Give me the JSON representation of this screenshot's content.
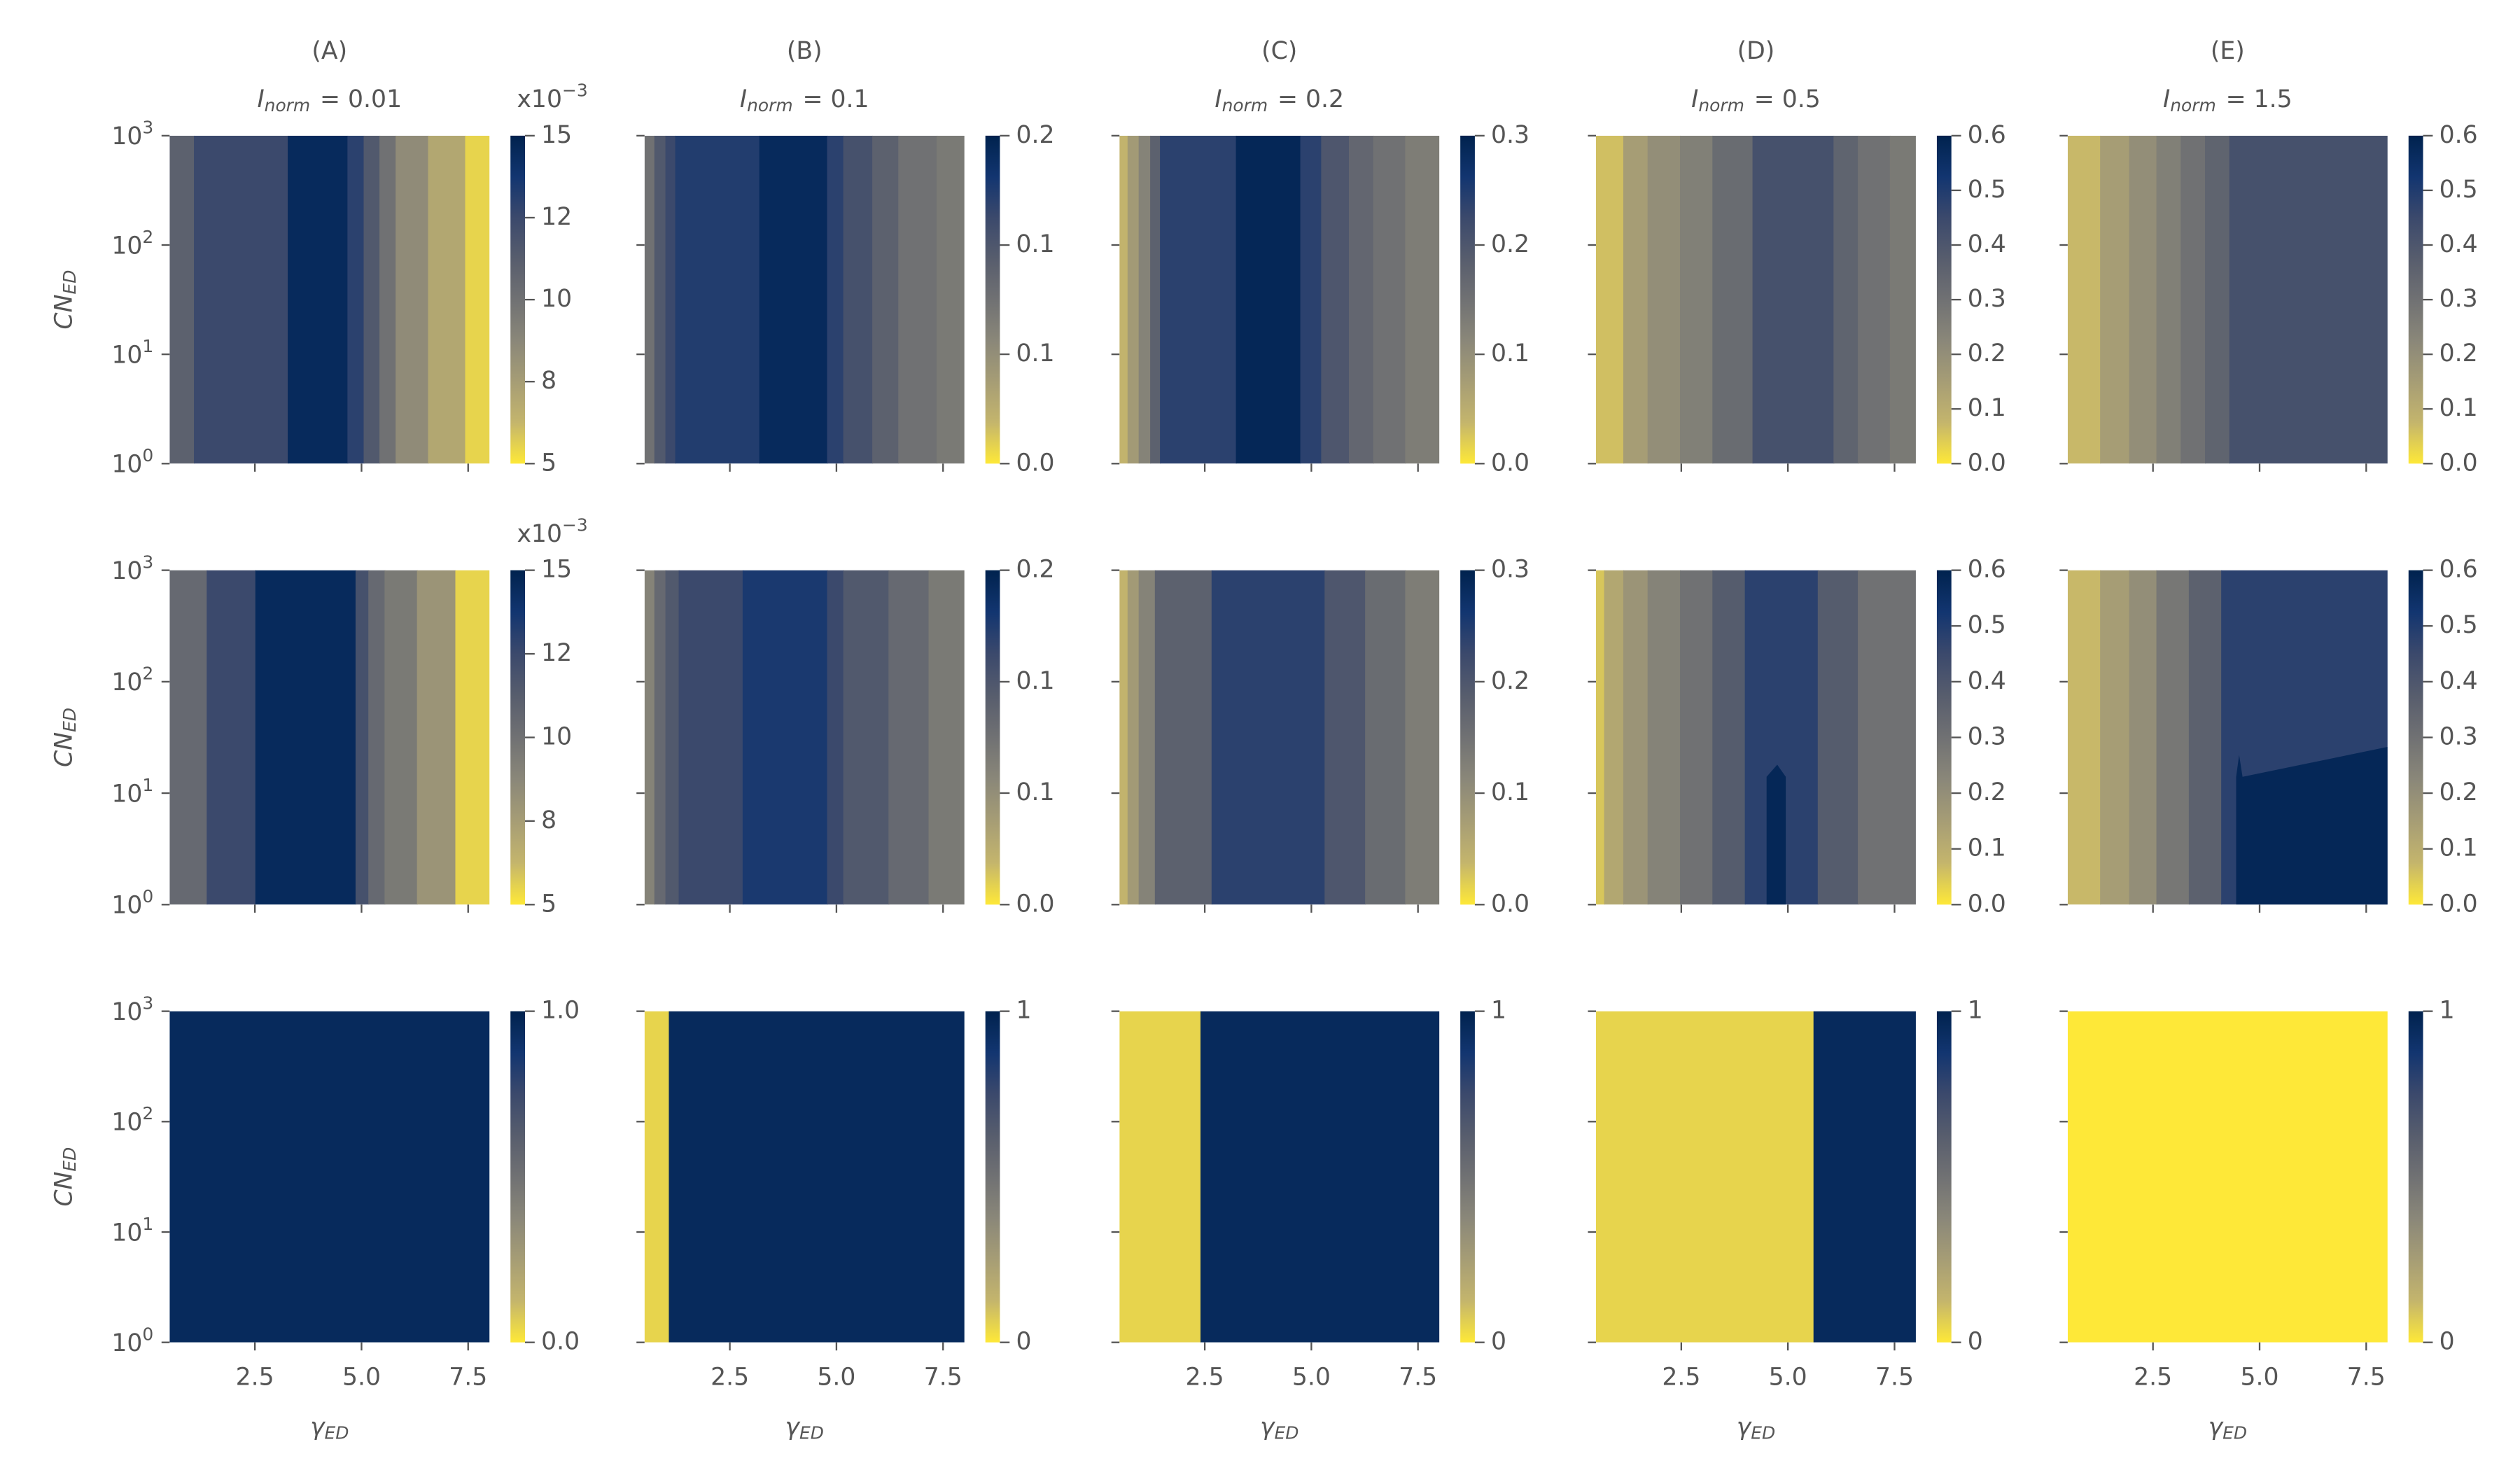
{
  "chart_data": [
    {
      "type": "contour",
      "title": "(A)",
      "subtitle": [
        "I",
        "norm",
        "= 0.01"
      ],
      "ylabel": [
        "CN",
        "ED"
      ],
      "xlim": [
        0.5,
        8
      ],
      "xticks": [
        2.5,
        5,
        7.5
      ],
      "xticklabels": false,
      "ylim": [
        1,
        1000
      ],
      "yscale": "log",
      "yticks": [
        {
          "value": 1,
          "label": [
            "10",
            "0"
          ]
        },
        {
          "value": 10,
          "label": [
            "10",
            "1"
          ]
        },
        {
          "value": 100,
          "label": [
            "10",
            "2"
          ]
        },
        {
          "value": 1000,
          "label": [
            "10",
            "3"
          ]
        }
      ],
      "colormap": "cividis_r",
      "clim": [
        5,
        15
      ],
      "cticks": [
        5,
        {
          "value": 7.5,
          "label": "8"
        },
        10,
        {
          "value": 12.5,
          "label": "12"
        },
        15
      ],
      "coffset": [
        "x10",
        "−3"
      ],
      "x_edges": [
        0.5,
        1.07,
        3.27,
        4.67,
        5.05,
        5.42,
        5.8,
        6.56,
        7.43,
        8
      ],
      "values": [
        11,
        12.5,
        14.5,
        13,
        11.5,
        10,
        8.5,
        7,
        5.5
      ]
    },
    {
      "type": "contour",
      "title": "(B)",
      "subtitle": [
        "I",
        "norm",
        "= 0.1"
      ],
      "xlim": [
        0.5,
        8
      ],
      "xticks": [
        2.5,
        5,
        7.5
      ],
      "xticklabels": false,
      "ylim": [
        1,
        1000
      ],
      "yscale": "log",
      "yticks": [
        1,
        10,
        100,
        1000
      ],
      "yticklabels": false,
      "colormap": "cividis_r",
      "clim": [
        0,
        0.2
      ],
      "cticks": [
        {
          "value": 0,
          "label": "0.0"
        },
        {
          "value": 0.0667,
          "label": "0.1"
        },
        {
          "value": 0.1333,
          "label": "0.1"
        },
        0.2
      ],
      "x_edges": [
        0.5,
        0.73,
        0.99,
        1.22,
        3.19,
        4.78,
        5.16,
        5.84,
        6.45,
        7.35,
        8
      ],
      "values": [
        0.1,
        0.13,
        0.15,
        0.165,
        0.19,
        0.16,
        0.14,
        0.12,
        0.1,
        0.09
      ]
    },
    {
      "type": "contour",
      "title": "(C)",
      "subtitle": [
        "I",
        "norm",
        "= 0.2"
      ],
      "xlim": [
        0.5,
        8
      ],
      "xticks": [
        2.5,
        5,
        7.5
      ],
      "xticklabels": false,
      "ylim": [
        1,
        1000
      ],
      "yscale": "log",
      "yticks": [
        1,
        10,
        100,
        1000
      ],
      "yticklabels": false,
      "colormap": "cividis_r",
      "clim": [
        0,
        0.3
      ],
      "cticks": [
        {
          "value": 0,
          "label": "0.0"
        },
        0.1,
        0.2,
        0.3
      ],
      "x_edges": [
        0.5,
        0.69,
        0.95,
        1.22,
        1.45,
        3.23,
        4.74,
        5.23,
        5.88,
        6.45,
        7.2,
        8
      ],
      "values": [
        0.04,
        0.08,
        0.12,
        0.18,
        0.24,
        0.29,
        0.24,
        0.2,
        0.17,
        0.15,
        0.13
      ]
    },
    {
      "type": "contour",
      "title": "(D)",
      "subtitle": [
        "I",
        "norm",
        "= 0.5"
      ],
      "xlim": [
        0.5,
        8
      ],
      "xticks": [
        2.5,
        5,
        7.5
      ],
      "xticklabels": false,
      "ylim": [
        1,
        1000
      ],
      "yscale": "log",
      "yticks": [
        1,
        10,
        100,
        1000
      ],
      "yticklabels": false,
      "colormap": "cividis_r",
      "clim": [
        0,
        0.6
      ],
      "cticks": [
        {
          "value": 0,
          "label": "0.0"
        },
        0.1,
        0.2,
        0.3,
        0.4,
        0.5,
        0.6
      ],
      "x_edges": [
        0.5,
        1.14,
        1.71,
        2.47,
        3.23,
        4.17,
        6.07,
        6.64,
        7.39,
        8
      ],
      "values": [
        0.06,
        0.15,
        0.2,
        0.25,
        0.32,
        0.42,
        0.35,
        0.3,
        0.27
      ]
    },
    {
      "type": "contour",
      "title": "(E)",
      "subtitle": [
        "I",
        "norm",
        "= 1.5"
      ],
      "xlim": [
        0.5,
        8
      ],
      "xticks": [
        2.5,
        5,
        7.5
      ],
      "xticklabels": false,
      "ylim": [
        1,
        1000
      ],
      "yscale": "log",
      "yticks": [
        1,
        10,
        100,
        1000
      ],
      "yticklabels": false,
      "colormap": "cividis_r",
      "clim": [
        0,
        0.6
      ],
      "cticks": [
        {
          "value": 0,
          "label": "0.0"
        },
        0.1,
        0.2,
        0.3,
        0.4,
        0.5,
        0.6
      ],
      "x_edges": [
        0.5,
        1.26,
        1.94,
        2.58,
        3.15,
        3.72,
        4.29,
        8
      ],
      "values": [
        0.07,
        0.15,
        0.2,
        0.25,
        0.3,
        0.35,
        0.42
      ]
    },
    {
      "type": "contour",
      "ylabel": [
        "CN",
        "ED"
      ],
      "xlim": [
        0.5,
        8
      ],
      "xticks": [
        2.5,
        5,
        7.5
      ],
      "xticklabels": false,
      "ylim": [
        1,
        1000
      ],
      "yscale": "log",
      "yticks": [
        {
          "value": 1,
          "label": [
            "10",
            "0"
          ]
        },
        {
          "value": 10,
          "label": [
            "10",
            "1"
          ]
        },
        {
          "value": 100,
          "label": [
            "10",
            "2"
          ]
        },
        {
          "value": 1000,
          "label": [
            "10",
            "3"
          ]
        }
      ],
      "colormap": "cividis_r",
      "clim": [
        5,
        15
      ],
      "cticks": [
        5,
        {
          "value": 7.5,
          "label": "8"
        },
        10,
        {
          "value": 12.5,
          "label": "12"
        },
        15
      ],
      "coffset": [
        "x10",
        "−3"
      ],
      "x_edges": [
        0.5,
        1.37,
        2.51,
        4.86,
        5.16,
        5.54,
        6.3,
        7.2,
        8
      ],
      "values": [
        10.5,
        12.5,
        14.5,
        12,
        10.5,
        9.5,
        8,
        5.5
      ]
    },
    {
      "type": "contour",
      "xlim": [
        0.5,
        8
      ],
      "xticks": [
        2.5,
        5,
        7.5
      ],
      "xticklabels": false,
      "ylim": [
        1,
        1000
      ],
      "yscale": "log",
      "yticks": [
        1,
        10,
        100,
        1000
      ],
      "yticklabels": false,
      "colormap": "cividis_r",
      "clim": [
        0,
        0.2
      ],
      "cticks": [
        {
          "value": 0,
          "label": "0.0"
        },
        {
          "value": 0.0667,
          "label": "0.1"
        },
        {
          "value": 0.1333,
          "label": "0.1"
        },
        0.2
      ],
      "x_edges": [
        0.5,
        0.73,
        0.99,
        1.3,
        2.8,
        4.78,
        5.16,
        6.22,
        7.16,
        8
      ],
      "values": [
        0.08,
        0.11,
        0.13,
        0.15,
        0.17,
        0.15,
        0.13,
        0.11,
        0.09
      ]
    },
    {
      "type": "contour",
      "xlim": [
        0.5,
        8
      ],
      "xticks": [
        2.5,
        5,
        7.5
      ],
      "xticklabels": false,
      "ylim": [
        1,
        1000
      ],
      "yscale": "log",
      "yticks": [
        1,
        10,
        100,
        1000
      ],
      "yticklabels": false,
      "colormap": "cividis_r",
      "clim": [
        0,
        0.3
      ],
      "cticks": [
        {
          "value": 0,
          "label": "0.0"
        },
        0.1,
        0.2,
        0.3
      ],
      "x_edges": [
        0.5,
        0.69,
        0.95,
        1.33,
        2.66,
        5.31,
        6.26,
        7.2,
        8
      ],
      "values": [
        0.04,
        0.08,
        0.12,
        0.18,
        0.24,
        0.2,
        0.16,
        0.13
      ]
    },
    {
      "type": "contour",
      "xlim": [
        0.5,
        8
      ],
      "xticks": [
        2.5,
        5,
        7.5
      ],
      "xticklabels": false,
      "ylim": [
        1,
        1000
      ],
      "yscale": "log",
      "yticks": [
        1,
        10,
        100,
        1000
      ],
      "yticklabels": false,
      "colormap": "cividis_r",
      "clim": [
        0,
        0.6
      ],
      "cticks": [
        {
          "value": 0,
          "label": "0.0"
        },
        0.1,
        0.2,
        0.3,
        0.4,
        0.5,
        0.6
      ],
      "x_edges": [
        0.5,
        0.69,
        1.14,
        1.71,
        2.47,
        3.23,
        3.99,
        5.7,
        6.64,
        8
      ],
      "values": [
        0.05,
        0.12,
        0.18,
        0.24,
        0.3,
        0.38,
        0.48,
        0.38,
        0.3
      ],
      "patches": [
        {
          "x": [
            4.5,
            4.95,
            4.95,
            4.75,
            4.5
          ],
          "y": [
            1,
            1,
            14,
            18,
            14
          ],
          "value": 0.58
        }
      ]
    },
    {
      "type": "contour",
      "xlim": [
        0.5,
        8
      ],
      "xticks": [
        2.5,
        5,
        7.5
      ],
      "xticklabels": false,
      "ylim": [
        1,
        1000
      ],
      "yscale": "log",
      "yticks": [
        1,
        10,
        100,
        1000
      ],
      "yticklabels": false,
      "colormap": "cividis_r",
      "clim": [
        0,
        0.6
      ],
      "cticks": [
        {
          "value": 0,
          "label": "0.0"
        },
        0.1,
        0.2,
        0.3,
        0.4,
        0.5,
        0.6
      ],
      "x_edges": [
        0.5,
        1.26,
        1.94,
        2.58,
        3.34,
        4.1,
        8
      ],
      "values": [
        0.07,
        0.15,
        0.2,
        0.28,
        0.36,
        0.48
      ],
      "patches": [
        {
          "x": [
            4.45,
            8,
            8,
            4.6,
            4.52,
            4.45
          ],
          "y": [
            1,
            1,
            26,
            14,
            22,
            14
          ],
          "value": 0.58
        }
      ]
    },
    {
      "type": "contour",
      "ylabel": [
        "CN",
        "ED"
      ],
      "xlabel": [
        "γ",
        "ED"
      ],
      "xlim": [
        0.5,
        8
      ],
      "xticks": [
        2.5,
        {
          "value": 5,
          "label": "5.0"
        },
        7.5
      ],
      "ylim": [
        1,
        1000
      ],
      "yscale": "log",
      "yticks": [
        {
          "value": 1,
          "label": [
            "10",
            "0"
          ]
        },
        {
          "value": 10,
          "label": [
            "10",
            "1"
          ]
        },
        {
          "value": 100,
          "label": [
            "10",
            "2"
          ]
        },
        {
          "value": 1000,
          "label": [
            "10",
            "3"
          ]
        }
      ],
      "colormap": "cividis_r",
      "clim": [
        0,
        1
      ],
      "cticks": [
        {
          "value": 0,
          "label": "0.0"
        },
        {
          "value": 1,
          "label": "1.0"
        }
      ],
      "x_edges": [
        0.5,
        8
      ],
      "values": [
        0.95
      ]
    },
    {
      "type": "contour",
      "xlabel": [
        "γ",
        "ED"
      ],
      "xlim": [
        0.5,
        8
      ],
      "xticks": [
        2.5,
        {
          "value": 5,
          "label": "5.0"
        },
        7.5
      ],
      "ylim": [
        1,
        1000
      ],
      "yscale": "log",
      "yticks": [
        1,
        10,
        100,
        1000
      ],
      "yticklabels": false,
      "colormap": "cividis_r",
      "clim": [
        0,
        1
      ],
      "cticks": [
        0,
        1
      ],
      "x_edges": [
        0.5,
        1.07,
        8
      ],
      "values": [
        0.05,
        0.95
      ]
    },
    {
      "type": "contour",
      "xlabel": [
        "γ",
        "ED"
      ],
      "xlim": [
        0.5,
        8
      ],
      "xticks": [
        2.5,
        {
          "value": 5,
          "label": "5.0"
        },
        7.5
      ],
      "ylim": [
        1,
        1000
      ],
      "yscale": "log",
      "yticks": [
        1,
        10,
        100,
        1000
      ],
      "yticklabels": false,
      "colormap": "cividis_r",
      "clim": [
        0,
        1
      ],
      "cticks": [
        0,
        1
      ],
      "x_edges": [
        0.5,
        2.4,
        8
      ],
      "values": [
        0.05,
        0.95
      ]
    },
    {
      "type": "contour",
      "xlabel": [
        "γ",
        "ED"
      ],
      "xlim": [
        0.5,
        8
      ],
      "xticks": [
        2.5,
        {
          "value": 5,
          "label": "5.0"
        },
        7.5
      ],
      "ylim": [
        1,
        1000
      ],
      "yscale": "log",
      "yticks": [
        1,
        10,
        100,
        1000
      ],
      "yticklabels": false,
      "colormap": "cividis_r",
      "clim": [
        0,
        1
      ],
      "cticks": [
        0,
        1
      ],
      "x_edges": [
        0.5,
        5.6,
        8
      ],
      "values": [
        0.05,
        0.95
      ]
    },
    {
      "type": "contour",
      "xlabel": [
        "γ",
        "ED"
      ],
      "xlim": [
        0.5,
        8
      ],
      "xticks": [
        2.5,
        {
          "value": 5,
          "label": "5.0"
        },
        7.5
      ],
      "ylim": [
        1,
        1000
      ],
      "yscale": "log",
      "yticks": [
        1,
        10,
        100,
        1000
      ],
      "yticklabels": false,
      "colormap": "cividis_r",
      "clim": [
        0,
        1
      ],
      "cticks": [
        0,
        1
      ],
      "x_edges": [
        0.5,
        8
      ],
      "values": [
        0
      ]
    }
  ]
}
